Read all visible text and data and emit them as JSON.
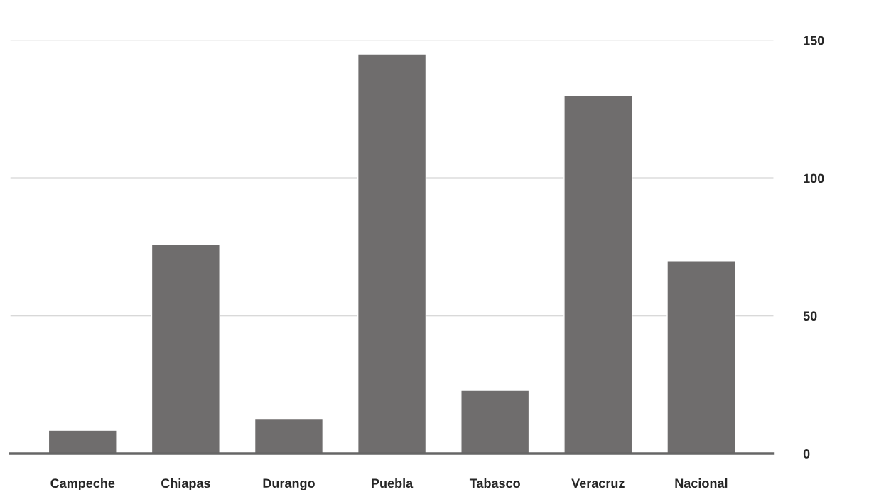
{
  "chart_data": {
    "type": "bar",
    "categories": [
      "Campeche",
      "Chiapas",
      "Durango",
      "Puebla",
      "Tabasco",
      "Veracruz",
      "Nacional"
    ],
    "values": [
      8.5,
      76,
      12.5,
      145,
      23,
      130,
      70
    ],
    "color": "#6f6d6d",
    "ylim": [
      0,
      150
    ],
    "yticks": [
      0,
      50,
      100,
      150
    ],
    "grid": "y",
    "legend": false
  }
}
